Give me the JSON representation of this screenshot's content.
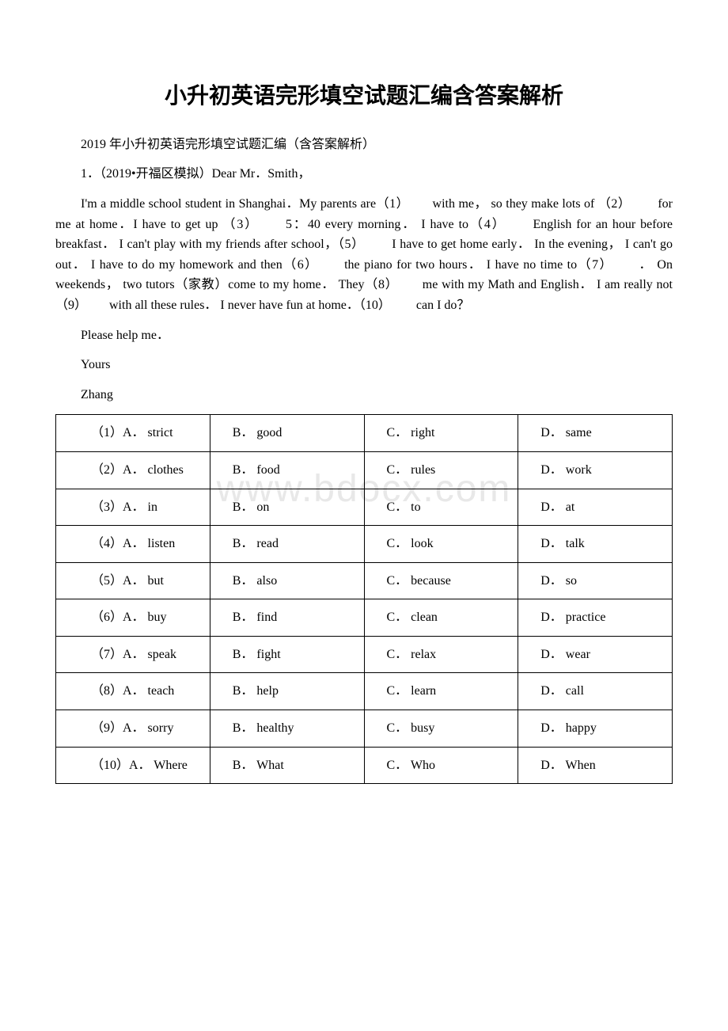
{
  "title": "小升初英语完形填空试题汇编含答案解析",
  "subtitle": "2019 年小升初英语完形填空试题汇编（含答案解析）",
  "question_heading": "1．（2019•开福区模拟）Dear Mr．Smith，",
  "passage": "I'm a middle school student in Shanghai．My parents are（1）　   　with me， so they make lots of （2）　   　 for me at home．I have to get up （3）　   　5：40 every morning． I have to（4）　   　English for an hour before breakfast． I can't play with my friends after school，（5）　   　 I have to get home early． In the evening， I can't go out． I have to do my homework and then（6）　   　the piano for two hours． I have no time to（7）　   　． On weekends， two tutors（家教）come to my home． They（8）　   　me with my Math and English． I am really not （9）　   　with all these rules． I never have fun at home．（10）　   　 can I do？",
  "closing1": "Please help me．",
  "closing2": "Yours",
  "closing3": "Zhang",
  "watermark": "www.bdocx.com",
  "table_rows": [
    {
      "a": "（1）A． strict",
      "b": "B． good",
      "c": "C． right",
      "d": "D． same"
    },
    {
      "a": "（2）A． clothes",
      "b": "B． food",
      "c": "C． rules",
      "d": "D． work"
    },
    {
      "a": "（3）A． in",
      "b": "B． on",
      "c": "C． to",
      "d": "D． at"
    },
    {
      "a": "（4）A． listen",
      "b": "B． read",
      "c": "C． look",
      "d": "D． talk"
    },
    {
      "a": "（5）A． but",
      "b": "B． also",
      "c": "C． because",
      "d": "D． so"
    },
    {
      "a": "（6）A． buy",
      "b": "B． find",
      "c": "C． clean",
      "d": "D． practice"
    },
    {
      "a": "（7）A． speak",
      "b": "B． fight",
      "c": "C． relax",
      "d": "D． wear"
    },
    {
      "a": "（8）A． teach",
      "b": "B． help",
      "c": "C． learn",
      "d": "D． call"
    },
    {
      "a": "（9）A． sorry",
      "b": "B． healthy",
      "c": "C． busy",
      "d": "D． happy"
    },
    {
      "a": "（10）A． Where",
      "b": "B． What",
      "c": "C． Who",
      "d": "D． When"
    }
  ]
}
